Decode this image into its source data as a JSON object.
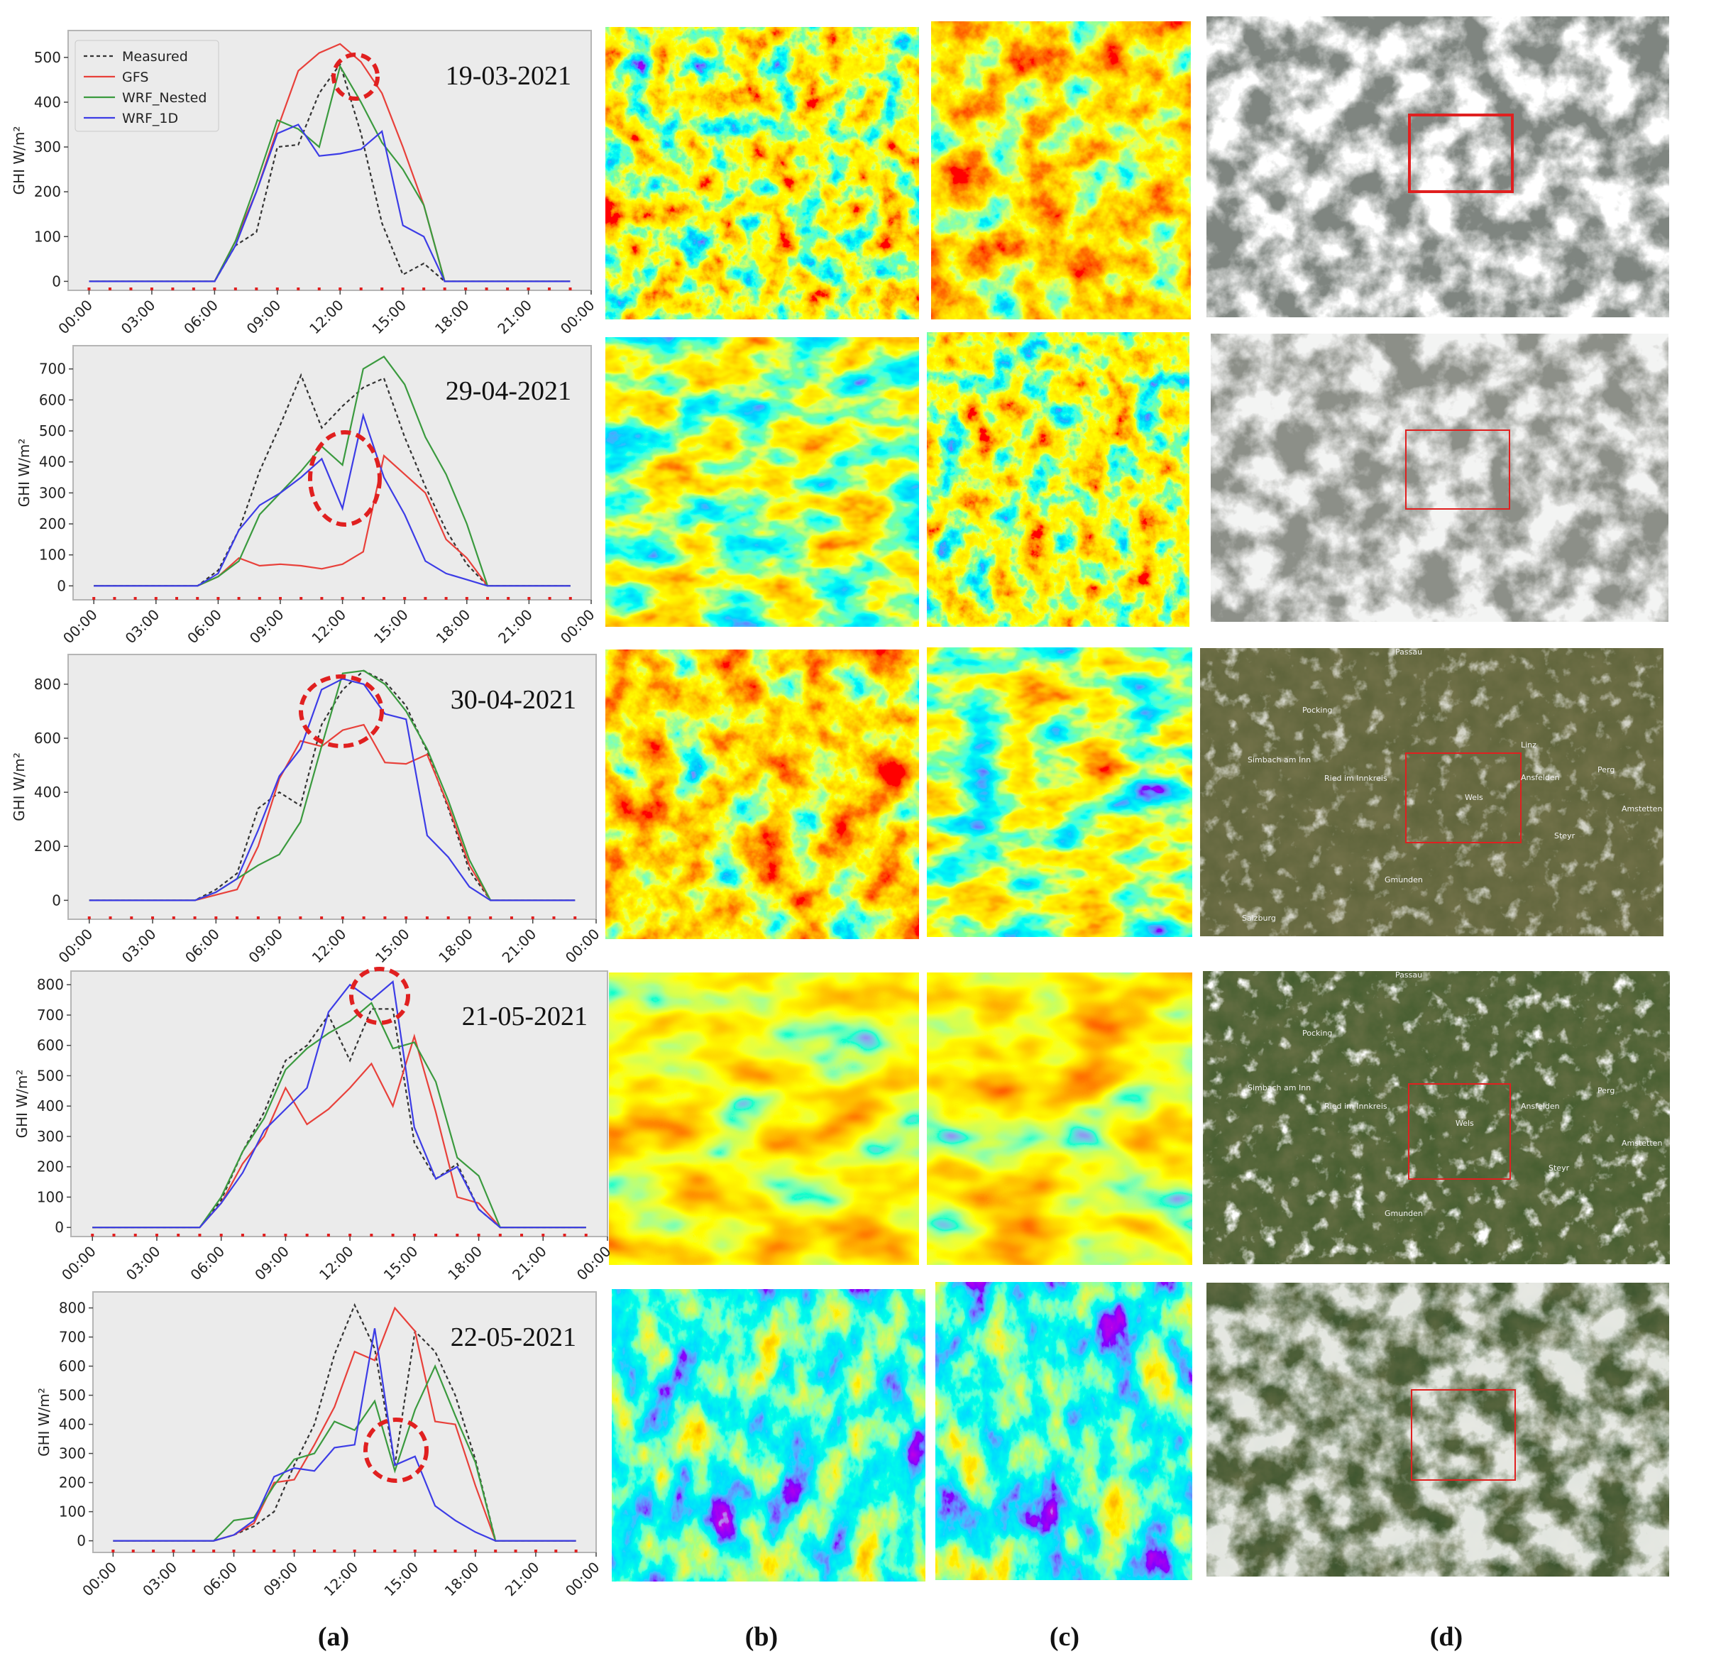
{
  "chart_data": [
    {
      "type": "line",
      "title": "19-03-2021",
      "ylabel": "GHI W/m²",
      "x": [
        0,
        1,
        2,
        3,
        4,
        5,
        6,
        7,
        8,
        9,
        10,
        11,
        12,
        13,
        14,
        15,
        16,
        17,
        18,
        19,
        20,
        21,
        22,
        23
      ],
      "xlim": [
        -1,
        24
      ],
      "xticks": [
        {
          "value": 0,
          "label": "00:00"
        },
        {
          "value": 3,
          "label": "03:00"
        },
        {
          "value": 6,
          "label": "06:00"
        },
        {
          "value": 9,
          "label": "09:00"
        },
        {
          "value": 12,
          "label": "12:00"
        },
        {
          "value": 15,
          "label": "15:00"
        },
        {
          "value": 18,
          "label": "18:00"
        },
        {
          "value": 21,
          "label": "21:00"
        },
        {
          "value": 24,
          "label": "00:00"
        }
      ],
      "ylim": [
        -20,
        560
      ],
      "yticks": [
        0,
        100,
        200,
        300,
        400,
        500
      ],
      "legend": "upper left",
      "series": [
        {
          "name": "Measured",
          "color": "#333333",
          "linestyle": "dashed",
          "values": [
            0,
            0,
            0,
            0,
            0,
            0,
            0,
            80,
            110,
            300,
            305,
            420,
            485,
            330,
            130,
            15,
            40,
            0,
            0,
            0,
            0,
            0,
            0,
            0
          ]
        },
        {
          "name": "GFS",
          "color": "#e8403a",
          "linestyle": "solid",
          "values": [
            0,
            0,
            0,
            0,
            0,
            0,
            0,
            90,
            200,
            340,
            470,
            510,
            530,
            490,
            420,
            300,
            170,
            0,
            0,
            0,
            0,
            0,
            0,
            0
          ]
        },
        {
          "name": "WRF_Nested",
          "color": "#3a9a3e",
          "linestyle": "solid",
          "values": [
            0,
            0,
            0,
            0,
            0,
            0,
            0,
            90,
            220,
            360,
            340,
            300,
            480,
            400,
            310,
            250,
            170,
            0,
            0,
            0,
            0,
            0,
            0,
            0
          ]
        },
        {
          "name": "WRF_1D",
          "color": "#3c3ce6",
          "linestyle": "solid",
          "values": [
            0,
            0,
            0,
            0,
            0,
            0,
            0,
            80,
            200,
            330,
            350,
            280,
            285,
            295,
            335,
            125,
            100,
            0,
            0,
            0,
            0,
            0,
            0,
            0
          ]
        }
      ]
    },
    {
      "type": "line",
      "title": "29-04-2021",
      "ylabel": "GHI W/m²",
      "x": [
        0,
        1,
        2,
        3,
        4,
        5,
        6,
        7,
        8,
        9,
        10,
        11,
        12,
        13,
        14,
        15,
        16,
        17,
        18,
        19,
        20,
        21,
        22,
        23
      ],
      "xlim": [
        -1,
        24
      ],
      "xticks": [
        {
          "value": 0,
          "label": "00:00"
        },
        {
          "value": 3,
          "label": "03:00"
        },
        {
          "value": 6,
          "label": "06:00"
        },
        {
          "value": 9,
          "label": "09:00"
        },
        {
          "value": 12,
          "label": "12:00"
        },
        {
          "value": 15,
          "label": "15:00"
        },
        {
          "value": 18,
          "label": "18:00"
        },
        {
          "value": 21,
          "label": "21:00"
        },
        {
          "value": 24,
          "label": "00:00"
        }
      ],
      "ylim": [
        -45,
        775
      ],
      "yticks": [
        0,
        100,
        200,
        300,
        400,
        500,
        600,
        700
      ],
      "series": [
        {
          "name": "Measured",
          "color": "#333333",
          "linestyle": "dashed",
          "values": [
            0,
            0,
            0,
            0,
            0,
            0,
            50,
            180,
            370,
            520,
            680,
            510,
            580,
            640,
            670,
            480,
            320,
            180,
            70,
            0,
            0,
            0,
            0,
            0
          ]
        },
        {
          "name": "GFS",
          "color": "#e8403a",
          "linestyle": "solid",
          "values": [
            0,
            0,
            0,
            0,
            0,
            0,
            30,
            90,
            65,
            70,
            65,
            55,
            70,
            110,
            420,
            360,
            300,
            150,
            90,
            0,
            0,
            0,
            0,
            0
          ]
        },
        {
          "name": "WRF_Nested",
          "color": "#3a9a3e",
          "linestyle": "solid",
          "values": [
            0,
            0,
            0,
            0,
            0,
            0,
            30,
            80,
            230,
            300,
            370,
            450,
            390,
            700,
            740,
            650,
            480,
            360,
            200,
            0,
            0,
            0,
            0,
            0
          ]
        },
        {
          "name": "WRF_1D",
          "color": "#3c3ce6",
          "linestyle": "solid",
          "values": [
            0,
            0,
            0,
            0,
            0,
            0,
            40,
            180,
            260,
            300,
            350,
            410,
            250,
            550,
            350,
            230,
            80,
            40,
            20,
            0,
            0,
            0,
            0,
            0
          ]
        }
      ]
    },
    {
      "type": "line",
      "title": "30-04-2021",
      "ylabel": "GHI W/m²",
      "x": [
        0,
        1,
        2,
        3,
        4,
        5,
        6,
        7,
        8,
        9,
        10,
        11,
        12,
        13,
        14,
        15,
        16,
        17,
        18,
        19,
        20,
        21,
        22,
        23
      ],
      "xlim": [
        -1,
        24
      ],
      "xticks": [
        {
          "value": 0,
          "label": "00:00"
        },
        {
          "value": 3,
          "label": "03:00"
        },
        {
          "value": 6,
          "label": "06:00"
        },
        {
          "value": 9,
          "label": "09:00"
        },
        {
          "value": 12,
          "label": "12:00"
        },
        {
          "value": 15,
          "label": "15:00"
        },
        {
          "value": 18,
          "label": "18:00"
        },
        {
          "value": 21,
          "label": "21:00"
        },
        {
          "value": 24,
          "label": "00:00"
        }
      ],
      "ylim": [
        -70,
        910
      ],
      "yticks": [
        0,
        200,
        400,
        600,
        800
      ],
      "series": [
        {
          "name": "Measured",
          "color": "#333333",
          "linestyle": "dashed",
          "values": [
            0,
            0,
            0,
            0,
            0,
            0,
            40,
            100,
            340,
            400,
            350,
            650,
            780,
            850,
            810,
            720,
            550,
            340,
            110,
            0,
            0,
            0,
            0,
            0
          ]
        },
        {
          "name": "GFS",
          "color": "#e8403a",
          "linestyle": "solid",
          "values": [
            0,
            0,
            0,
            0,
            0,
            0,
            20,
            40,
            200,
            450,
            590,
            570,
            630,
            650,
            510,
            505,
            540,
            350,
            130,
            0,
            0,
            0,
            0,
            0
          ]
        },
        {
          "name": "WRF_Nested",
          "color": "#3a9a3e",
          "linestyle": "solid",
          "values": [
            0,
            0,
            0,
            0,
            0,
            0,
            30,
            80,
            130,
            170,
            290,
            570,
            840,
            850,
            800,
            700,
            560,
            370,
            150,
            0,
            0,
            0,
            0,
            0
          ]
        },
        {
          "name": "WRF_1D",
          "color": "#3c3ce6",
          "linestyle": "solid",
          "values": [
            0,
            0,
            0,
            0,
            0,
            0,
            30,
            80,
            260,
            460,
            560,
            780,
            820,
            800,
            690,
            670,
            240,
            160,
            50,
            0,
            0,
            0,
            0,
            0
          ]
        }
      ]
    },
    {
      "type": "line",
      "title": "21-05-2021",
      "ylabel": "GHI W/m²",
      "x": [
        0,
        1,
        2,
        3,
        4,
        5,
        6,
        7,
        8,
        9,
        10,
        11,
        12,
        13,
        14,
        15,
        16,
        17,
        18,
        19,
        20,
        21,
        22,
        23
      ],
      "xlim": [
        -1,
        24
      ],
      "xticks": [
        {
          "value": 0,
          "label": "00:00"
        },
        {
          "value": 3,
          "label": "03:00"
        },
        {
          "value": 6,
          "label": "06:00"
        },
        {
          "value": 9,
          "label": "09:00"
        },
        {
          "value": 12,
          "label": "12:00"
        },
        {
          "value": 15,
          "label": "15:00"
        },
        {
          "value": 18,
          "label": "18:00"
        },
        {
          "value": 21,
          "label": "21:00"
        },
        {
          "value": 24,
          "label": "00:00"
        }
      ],
      "ylim": [
        -30,
        845
      ],
      "yticks": [
        0,
        100,
        200,
        300,
        400,
        500,
        600,
        700,
        800
      ],
      "series": [
        {
          "name": "Measured",
          "color": "#333333",
          "linestyle": "dashed",
          "values": [
            0,
            0,
            0,
            0,
            0,
            0,
            90,
            250,
            380,
            550,
            600,
            700,
            550,
            720,
            720,
            280,
            160,
            210,
            60,
            0,
            0,
            0,
            0,
            0
          ]
        },
        {
          "name": "GFS",
          "color": "#e8403a",
          "linestyle": "solid",
          "values": [
            0,
            0,
            0,
            0,
            0,
            0,
            80,
            210,
            300,
            460,
            340,
            390,
            460,
            540,
            400,
            630,
            380,
            100,
            80,
            0,
            0,
            0,
            0,
            0
          ]
        },
        {
          "name": "WRF_Nested",
          "color": "#3a9a3e",
          "linestyle": "solid",
          "values": [
            0,
            0,
            0,
            0,
            0,
            0,
            100,
            250,
            360,
            520,
            590,
            640,
            680,
            740,
            590,
            610,
            480,
            230,
            170,
            0,
            0,
            0,
            0,
            0
          ]
        },
        {
          "name": "WRF_1D",
          "color": "#3c3ce6",
          "linestyle": "solid",
          "values": [
            0,
            0,
            0,
            0,
            0,
            0,
            80,
            180,
            320,
            390,
            460,
            710,
            800,
            750,
            810,
            330,
            160,
            200,
            60,
            0,
            0,
            0,
            0,
            0
          ]
        }
      ]
    },
    {
      "type": "line",
      "title": "22-05-2021",
      "ylabel": "GHI W/m²",
      "x": [
        0,
        1,
        2,
        3,
        4,
        5,
        6,
        7,
        8,
        9,
        10,
        11,
        12,
        13,
        14,
        15,
        16,
        17,
        18,
        19,
        20,
        21,
        22,
        23
      ],
      "xlim": [
        -1,
        24
      ],
      "xticks": [
        {
          "value": 0,
          "label": "00:00"
        },
        {
          "value": 3,
          "label": "03:00"
        },
        {
          "value": 6,
          "label": "06:00"
        },
        {
          "value": 9,
          "label": "09:00"
        },
        {
          "value": 12,
          "label": "12:00"
        },
        {
          "value": 15,
          "label": "15:00"
        },
        {
          "value": 18,
          "label": "18:00"
        },
        {
          "value": 21,
          "label": "21:00"
        },
        {
          "value": 24,
          "label": "00:00"
        }
      ],
      "ylim": [
        -40,
        855
      ],
      "yticks": [
        0,
        100,
        200,
        300,
        400,
        500,
        600,
        700,
        800
      ],
      "series": [
        {
          "name": "Measured",
          "color": "#333333",
          "linestyle": "dashed",
          "values": [
            0,
            0,
            0,
            0,
            0,
            0,
            20,
            50,
            100,
            260,
            400,
            640,
            810,
            660,
            260,
            720,
            650,
            500,
            280,
            0,
            0,
            0,
            0,
            0
          ]
        },
        {
          "name": "GFS",
          "color": "#e8403a",
          "linestyle": "solid",
          "values": [
            0,
            0,
            0,
            0,
            0,
            0,
            20,
            60,
            200,
            210,
            330,
            460,
            650,
            620,
            800,
            720,
            410,
            400,
            190,
            0,
            0,
            0,
            0,
            0
          ]
        },
        {
          "name": "WRF_Nested",
          "color": "#3a9a3e",
          "linestyle": "solid",
          "values": [
            0,
            0,
            0,
            0,
            0,
            0,
            70,
            80,
            190,
            280,
            300,
            410,
            380,
            480,
            240,
            450,
            600,
            430,
            270,
            0,
            0,
            0,
            0,
            0
          ]
        },
        {
          "name": "WRF_1D",
          "color": "#3c3ce6",
          "linestyle": "solid",
          "values": [
            0,
            0,
            0,
            0,
            0,
            0,
            20,
            70,
            220,
            250,
            240,
            320,
            330,
            730,
            260,
            290,
            120,
            70,
            30,
            0,
            0,
            0,
            0,
            0
          ]
        }
      ]
    }
  ],
  "panel_labels": [
    "(a)",
    "(b)",
    "(c)",
    "(d)"
  ],
  "map_labels": [
    [],
    [],
    [
      "Passau",
      "Pocking",
      "Simbach am Inn",
      "Ried im Innkreis",
      "Linz",
      "Wels",
      "Ansfelden",
      "Perg",
      "Amstetten",
      "Steyr",
      "Gmunden",
      "Salzburg"
    ],
    [
      "Passau",
      "Pocking",
      "Simbach am Inn",
      "Ried im Innkreis",
      "Wels",
      "Ansfelden",
      "Perg",
      "Amstetten",
      "Steyr",
      "Gmunden"
    ],
    []
  ]
}
